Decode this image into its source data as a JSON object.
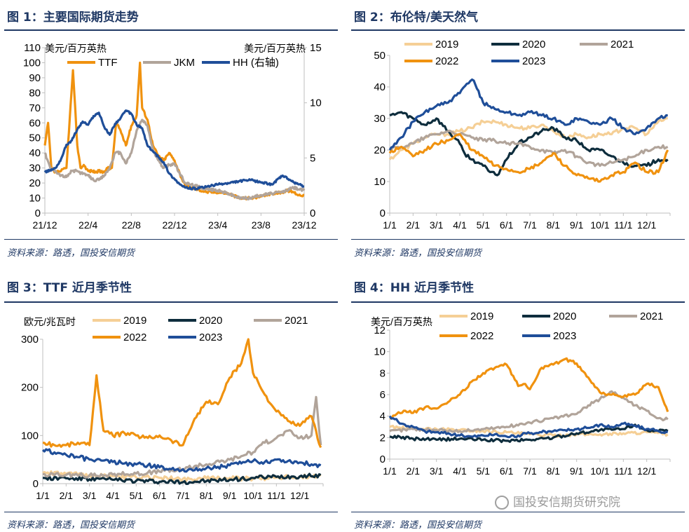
{
  "source_label": "资料来源：路透，国投安信期货",
  "watermark": "国投安信期货研究院",
  "colors": {
    "y2019": "#f5cf96",
    "y2020": "#0e2d3d",
    "y2021": "#b1a49a",
    "y2022": "#f0920f",
    "y2023": "#1f4e99",
    "TTF": "#f0920f",
    "JKM": "#b1a49a",
    "HH": "#1f4e99"
  },
  "chart_data": [
    {
      "id": "c1",
      "figure_title": "图 1：主要国际期货走势",
      "type": "line",
      "ylabel": "美元/百万英热",
      "y2label": "美元/百万英热",
      "ylim": [
        0,
        110
      ],
      "y2lim": [
        0,
        15
      ],
      "yticks": [
        "0",
        "10",
        "20",
        "30",
        "40",
        "50",
        "60",
        "70",
        "80",
        "90",
        "100",
        "110"
      ],
      "y2ticks": [
        "0",
        "5",
        "10",
        "15"
      ],
      "categories": [
        "21/12",
        "22/4",
        "22/8",
        "22/12",
        "23/4",
        "23/8",
        "23/12"
      ],
      "series": [
        {
          "name": "TTF",
          "axis": "left",
          "color": "TTF",
          "x": [
            0,
            0.3,
            0.6,
            0.9,
            1.5,
            2,
            2.6,
            3,
            3.3,
            3.6,
            4,
            4.4,
            4.8,
            5,
            5.4,
            5.8,
            6.2,
            6.6,
            7,
            7.5,
            8,
            8.5,
            8.8,
            9,
            9.5,
            10,
            10.5,
            11,
            11.5,
            12,
            12.5,
            13,
            13.5,
            14,
            15,
            16,
            17,
            18,
            19,
            20,
            21,
            22,
            22.5,
            23,
            23.5,
            24
          ],
          "values": [
            45,
            60,
            30,
            27,
            28,
            30,
            95,
            45,
            30,
            32,
            28,
            28,
            27,
            28,
            27,
            30,
            30,
            60,
            55,
            45,
            58,
            65,
            100,
            70,
            62,
            45,
            38,
            35,
            40,
            35,
            26,
            18,
            17,
            16,
            14,
            14,
            13,
            10,
            10,
            11,
            13,
            14,
            15,
            14,
            12,
            12
          ]
        },
        {
          "name": "JKM",
          "axis": "left",
          "color": "JKM",
          "x": [
            0,
            0.5,
            1,
            1.5,
            2,
            2.5,
            3,
            3.5,
            4,
            4.5,
            5,
            5.5,
            6,
            6.5,
            7,
            7.5,
            8,
            8.5,
            9,
            9.5,
            10,
            10.5,
            11,
            11.5,
            12,
            12.5,
            13,
            14,
            15,
            16,
            17,
            18,
            19,
            20,
            21,
            22,
            23,
            24
          ],
          "values": [
            40,
            30,
            28,
            25,
            24,
            28,
            28,
            26,
            25,
            22,
            22,
            25,
            30,
            40,
            40,
            33,
            40,
            55,
            62,
            58,
            42,
            35,
            30,
            32,
            33,
            26,
            20,
            18,
            16,
            15,
            13,
            10,
            10,
            12,
            13,
            14,
            17,
            15
          ]
        },
        {
          "name": "HH (右轴)",
          "axis": "right",
          "color": "HH",
          "x": [
            0,
            0.5,
            1,
            1.5,
            2,
            2.5,
            3,
            3.5,
            4,
            4.5,
            5,
            5.5,
            6,
            6.5,
            7,
            7.5,
            8,
            8.5,
            9,
            9.5,
            10,
            10.5,
            11,
            11.5,
            12,
            12.5,
            13,
            14,
            15,
            16,
            17,
            18,
            19,
            20,
            21,
            22,
            22.5,
            23,
            23.5,
            24
          ],
          "values": [
            3.7,
            3.9,
            4.1,
            4.9,
            6.2,
            6.6,
            7.6,
            8.3,
            8.0,
            8.8,
            9.1,
            7.8,
            7.1,
            8.1,
            8.6,
            9.3,
            9.0,
            8.0,
            7.7,
            6.1,
            5.6,
            5.1,
            4.6,
            3.6,
            3.1,
            2.6,
            2.3,
            2.2,
            2.4,
            2.6,
            2.7,
            2.9,
            3.0,
            2.8,
            2.6,
            3.4,
            3.1,
            2.8,
            2.6,
            2.4
          ]
        }
      ]
    },
    {
      "id": "c2",
      "figure_title": "图 2：布伦特/美天然气",
      "type": "line",
      "ylim": [
        0,
        50
      ],
      "yticks": [
        "0",
        "10",
        "20",
        "30",
        "40",
        "50"
      ],
      "categories": [
        "1/1",
        "2/1",
        "3/1",
        "4/1",
        "5/1",
        "6/1",
        "7/1",
        "8/1",
        "9/1",
        "10/1",
        "11/1",
        "12/1"
      ],
      "series": [
        {
          "name": "2019",
          "color": "y2019",
          "x": [
            0,
            0.5,
            1,
            1.5,
            2,
            2.5,
            3,
            3.5,
            4,
            4.5,
            5,
            5.5,
            6,
            6.5,
            7,
            7.5,
            8,
            8.5,
            9,
            9.5,
            10,
            10.5,
            11,
            11.5,
            11.9
          ],
          "values": [
            17,
            20,
            22,
            24,
            25,
            25,
            26,
            27,
            29,
            29,
            28,
            27,
            27,
            28,
            26,
            24,
            25,
            24,
            25,
            25,
            27,
            27,
            25,
            29,
            30
          ]
        },
        {
          "name": "2020",
          "color": "y2020",
          "x": [
            0,
            0.5,
            1,
            1.5,
            2,
            2.5,
            3,
            3.2,
            3.5,
            3.8,
            4,
            4.3,
            4.6,
            5,
            5.5,
            6,
            6.5,
            7,
            7.5,
            8,
            8.5,
            9,
            9.5,
            10,
            10.5,
            11,
            11.5,
            11.9
          ],
          "values": [
            31,
            32,
            30,
            28,
            30,
            26,
            22,
            19,
            17,
            16,
            15,
            13,
            12,
            17,
            22,
            24,
            26,
            27,
            24,
            23,
            20,
            20,
            18,
            16,
            15,
            15,
            17,
            17
          ]
        },
        {
          "name": "2021",
          "color": "y2021",
          "x": [
            0,
            0.5,
            1,
            1.5,
            2,
            2.5,
            3,
            3.5,
            4,
            4.5,
            5,
            5.5,
            6,
            6.5,
            7,
            7.5,
            8,
            8.5,
            9,
            9.5,
            10,
            10.5,
            11,
            11.5,
            11.9
          ],
          "values": [
            20,
            21,
            22,
            24,
            25,
            26,
            25,
            24,
            23,
            23,
            22,
            22,
            21,
            20,
            19,
            20,
            18,
            16,
            15,
            16,
            17,
            18,
            20,
            21,
            21
          ]
        },
        {
          "name": "2022",
          "color": "y2022",
          "x": [
            0,
            0.5,
            1,
            1.5,
            2,
            2.5,
            3,
            3.5,
            4,
            4.5,
            5,
            5.5,
            6,
            6.5,
            7,
            7.5,
            8,
            8.5,
            9,
            9.5,
            10,
            10.5,
            11,
            11.5,
            11.9
          ],
          "values": [
            19,
            21,
            18,
            20,
            22,
            23,
            25,
            20,
            18,
            15,
            14,
            13,
            14,
            16,
            19,
            15,
            12,
            11,
            10,
            12,
            13,
            16,
            13,
            13,
            20
          ]
        },
        {
          "name": "2023",
          "color": "y2023",
          "x": [
            0,
            0.5,
            1,
            1.5,
            2,
            2.5,
            3,
            3.3,
            3.6,
            4,
            4.5,
            5,
            5.5,
            6,
            6.5,
            7,
            7.5,
            8,
            8.5,
            9,
            9.5,
            10,
            10.5,
            11,
            11.5,
            11.9
          ],
          "values": [
            20,
            24,
            29,
            32,
            34,
            35,
            38,
            41,
            42,
            35,
            33,
            32,
            31,
            32,
            31,
            30,
            28,
            30,
            29,
            28,
            30,
            27,
            25,
            27,
            30,
            31
          ]
        }
      ]
    },
    {
      "id": "c3",
      "figure_title": "图 3：TTF 近月季节性",
      "type": "line",
      "ylabel": "欧元/兆瓦时",
      "ylim": [
        0,
        300
      ],
      "yticks": [
        "0",
        "100",
        "200",
        "300"
      ],
      "categories": [
        "1/1",
        "2/1",
        "3/1",
        "4/1",
        "5/1",
        "6/1",
        "7/1",
        "8/1",
        "9/1",
        "10/1",
        "11/1",
        "12/1"
      ],
      "series": [
        {
          "name": "2019",
          "color": "y2019",
          "x": [
            0,
            1,
            2,
            3,
            4,
            5,
            6,
            7,
            8,
            9,
            10,
            11,
            11.9
          ],
          "values": [
            22,
            20,
            18,
            15,
            13,
            12,
            10,
            11,
            12,
            10,
            13,
            14,
            16
          ]
        },
        {
          "name": "2020",
          "color": "y2020",
          "x": [
            0,
            1,
            2,
            3,
            4,
            5,
            6,
            7,
            8,
            9,
            10,
            11,
            11.9
          ],
          "values": [
            12,
            11,
            9,
            8,
            6,
            4,
            3,
            5,
            8,
            12,
            14,
            15,
            18
          ]
        },
        {
          "name": "2021",
          "color": "y2021",
          "x": [
            0,
            1,
            2,
            3,
            4,
            5,
            6,
            7,
            8,
            9,
            9.5,
            10,
            10.5,
            11,
            11.5,
            11.7,
            11.9
          ],
          "values": [
            20,
            18,
            17,
            19,
            21,
            25,
            30,
            40,
            50,
            65,
            85,
            95,
            110,
            95,
            100,
            180,
            80
          ]
        },
        {
          "name": "2022",
          "color": "y2022",
          "x": [
            0,
            0.5,
            1,
            1.5,
            2,
            2.3,
            2.6,
            3,
            3.5,
            4,
            4.5,
            5,
            5.5,
            6,
            6.5,
            7,
            7.5,
            8,
            8.5,
            8.8,
            9,
            9.5,
            10,
            10.5,
            11,
            11.5,
            11.9
          ],
          "values": [
            85,
            80,
            80,
            85,
            80,
            225,
            110,
            100,
            105,
            100,
            95,
            100,
            90,
            80,
            135,
            170,
            165,
            220,
            250,
            300,
            230,
            185,
            150,
            130,
            120,
            140,
            75
          ]
        },
        {
          "name": "2023",
          "color": "y2023",
          "x": [
            0,
            0.5,
            1,
            1.5,
            2,
            2.5,
            3,
            3.5,
            4,
            4.5,
            5,
            5.5,
            6,
            6.5,
            7,
            7.5,
            8,
            8.5,
            9,
            9.5,
            10,
            10.5,
            11,
            11.5,
            11.9
          ],
          "values": [
            70,
            65,
            60,
            55,
            50,
            48,
            45,
            42,
            40,
            38,
            34,
            30,
            30,
            28,
            32,
            35,
            38,
            42,
            47,
            45,
            50,
            47,
            44,
            40,
            38
          ]
        }
      ]
    },
    {
      "id": "c4",
      "figure_title": "图 4：HH 近月季节性",
      "type": "line",
      "ylabel": "美元/百万英热",
      "ylim": [
        0,
        12
      ],
      "yticks": [
        "0",
        "2",
        "4",
        "6",
        "8",
        "10",
        "12"
      ],
      "categories": [
        "1/1",
        "2/1",
        "3/1",
        "4/1",
        "5/1",
        "6/1",
        "7/1",
        "8/1",
        "9/1",
        "10/1",
        "11/1",
        "12/1"
      ],
      "series": [
        {
          "name": "2019",
          "color": "y2019",
          "x": [
            0,
            1,
            2,
            3,
            4,
            5,
            6,
            7,
            8,
            9,
            10,
            11,
            11.9
          ],
          "values": [
            3.0,
            2.8,
            2.8,
            2.7,
            2.6,
            2.5,
            2.3,
            2.2,
            2.3,
            2.3,
            2.4,
            2.5,
            2.3
          ]
        },
        {
          "name": "2020",
          "color": "y2020",
          "x": [
            0,
            1,
            2,
            3,
            4,
            5,
            6,
            7,
            8,
            9,
            10,
            10.5,
            11,
            11.5,
            11.9
          ],
          "values": [
            2.1,
            1.9,
            1.8,
            1.9,
            1.8,
            1.7,
            1.8,
            2.0,
            2.4,
            2.7,
            2.8,
            3.2,
            2.7,
            2.6,
            2.6
          ]
        },
        {
          "name": "2021",
          "color": "y2021",
          "x": [
            0,
            1,
            2,
            3,
            4,
            5,
            6,
            7,
            8,
            8.5,
            9,
            9.5,
            10,
            10.5,
            11,
            11.5,
            11.9
          ],
          "values": [
            2.6,
            2.8,
            2.7,
            2.6,
            2.8,
            3.0,
            3.4,
            3.8,
            4.2,
            5.0,
            5.6,
            6.3,
            5.7,
            5.0,
            4.5,
            3.8,
            3.7
          ]
        },
        {
          "name": "2022",
          "color": "y2022",
          "x": [
            0,
            0.3,
            0.6,
            1,
            1.5,
            2,
            2.5,
            3,
            3.5,
            4,
            4.5,
            5,
            5.5,
            5.8,
            6,
            6.5,
            7,
            7.5,
            8,
            8.5,
            9,
            9.5,
            10,
            10.5,
            11,
            11.5,
            11.9
          ],
          "values": [
            3.8,
            4.2,
            4.5,
            4.3,
            4.8,
            4.7,
            5.3,
            6.0,
            7.2,
            8.0,
            8.5,
            8.8,
            6.8,
            7.0,
            6.5,
            8.5,
            8.8,
            9.3,
            8.9,
            7.6,
            6.2,
            6.0,
            5.8,
            6.0,
            7.0,
            6.7,
            4.4
          ]
        },
        {
          "name": "2023",
          "color": "y2023",
          "x": [
            0,
            0.5,
            1,
            1.5,
            2,
            2.5,
            3,
            3.5,
            4,
            4.5,
            5,
            5.5,
            6,
            6.5,
            7,
            7.5,
            8,
            8.5,
            9,
            9.5,
            10,
            10.5,
            11,
            11.5,
            11.9
          ],
          "values": [
            4.0,
            3.3,
            3.0,
            2.6,
            2.5,
            2.4,
            2.2,
            2.1,
            2.2,
            2.3,
            2.1,
            2.2,
            2.4,
            2.5,
            2.6,
            2.7,
            2.8,
            2.9,
            3.2,
            3.0,
            3.3,
            3.1,
            2.8,
            2.6,
            2.5
          ]
        }
      ]
    }
  ]
}
